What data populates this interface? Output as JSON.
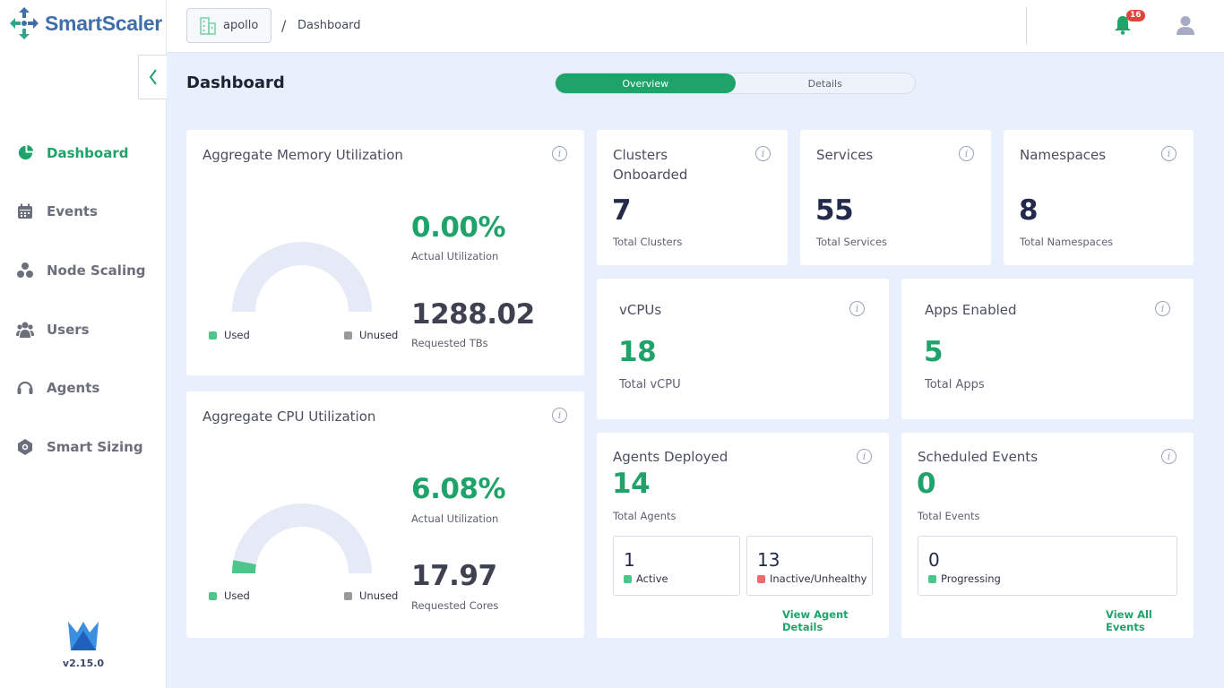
{
  "app": {
    "name": "SmartScaler",
    "version": "v2.15.0"
  },
  "header": {
    "cluster": "apollo",
    "separator": "/",
    "breadcrumb": "Dashboard",
    "notification_count": "16"
  },
  "sidebar": {
    "items": [
      {
        "label": "Dashboard",
        "icon": "pie-chart-icon",
        "active": true
      },
      {
        "label": "Events",
        "icon": "calendar-icon"
      },
      {
        "label": "Node Scaling",
        "icon": "nodes-icon"
      },
      {
        "label": "Users",
        "icon": "users-icon"
      },
      {
        "label": "Agents",
        "icon": "headset-icon"
      },
      {
        "label": "Smart Sizing",
        "icon": "smart-sizing-icon"
      }
    ]
  },
  "page": {
    "title": "Dashboard",
    "tabs": [
      "Overview",
      "Details"
    ],
    "active_tab": "Overview"
  },
  "memory": {
    "title": "Aggregate Memory Utilization",
    "utilization": "0.00%",
    "utilization_label": "Actual Utilization",
    "requested": "1288.02",
    "requested_label": "Requested TBs",
    "used_fraction": 0.0,
    "legend_used": "Used",
    "legend_unused": "Unused"
  },
  "cpu": {
    "title": "Aggregate CPU Utilization",
    "utilization": "6.08%",
    "utilization_label": "Actual Utilization",
    "requested": "17.97",
    "requested_label": "Requested Cores",
    "used_fraction": 0.0608,
    "legend_used": "Used",
    "legend_unused": "Unused"
  },
  "clusters": {
    "title": "Clusters Onboarded",
    "value": "7",
    "label": "Total Clusters"
  },
  "services": {
    "title": "Services",
    "value": "55",
    "label": "Total Services"
  },
  "namespaces": {
    "title": "Namespaces",
    "value": "8",
    "label": "Total Namespaces"
  },
  "vcpus": {
    "title": "vCPUs",
    "value": "18",
    "label": "Total vCPU"
  },
  "apps": {
    "title": "Apps Enabled",
    "value": "5",
    "label": "Total Apps"
  },
  "agents": {
    "title": "Agents Deployed",
    "value": "14",
    "label": "Total Agents",
    "active_value": "1",
    "active_label": "Active",
    "inactive_value": "13",
    "inactive_label": "Inactive/Unhealthy",
    "link": "View Agent Details"
  },
  "events": {
    "title": "Scheduled Events",
    "value": "0",
    "label": "Total Events",
    "progressing_value": "0",
    "progressing_label": "Progressing",
    "link": "View All Events"
  },
  "colors": {
    "accent": "#1fa36a",
    "gauge_track": "#e6eaf6",
    "used": "#4cc68b",
    "unused": "#9a9a9a",
    "inactive": "#ef6b6b",
    "navy": "#232a4b"
  }
}
